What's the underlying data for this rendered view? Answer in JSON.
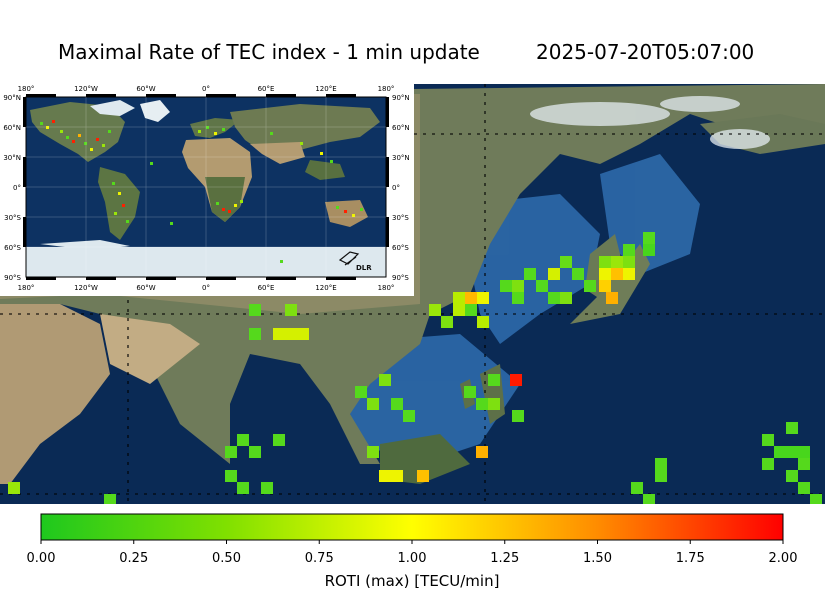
{
  "title": "Maximal Rate of TEC index - 1 min update",
  "timestamp": "2025-07-20T05:07:00",
  "inset": {
    "lon_labels": [
      "180°",
      "120°W",
      "60°W",
      "0°",
      "60°E",
      "120°E",
      "180°"
    ],
    "lat_labels": [
      "90°N",
      "60°N",
      "30°N",
      "0°",
      "30°S",
      "60°S",
      "90°S"
    ],
    "logo_text": "DLR"
  },
  "colorbar": {
    "label": "ROTI (max) [TECU/min]",
    "ticks": [
      "0.00",
      "0.25",
      "0.50",
      "0.75",
      "1.00",
      "1.25",
      "1.50",
      "1.75",
      "2.00"
    ],
    "vmin": 0,
    "vmax": 2,
    "colors": [
      "#1ec81e",
      "#80e000",
      "#ffff00",
      "#ff8c00",
      "#ff0000"
    ]
  },
  "colors": {
    "ocean": "#0a2a55",
    "shallow": "#2a64a8",
    "land": "#6d7a58",
    "desert": "#b59f78",
    "ice": "#dce8ef"
  }
}
